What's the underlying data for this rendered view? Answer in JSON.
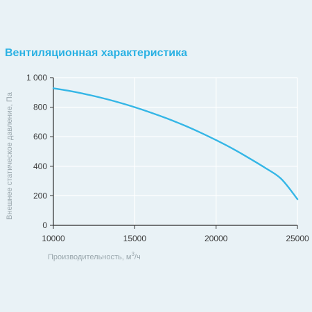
{
  "chart_data": {
    "type": "line",
    "title": "Вентиляционная характеристика",
    "xlabel": "Производительность, м",
    "xlabel_sup": "3",
    "xlabel_suffix": "/ч",
    "ylabel": "Внешнее статическое давление, Па",
    "xlim": [
      10000,
      25000
    ],
    "ylim": [
      0,
      1000
    ],
    "x_ticks": [
      10000,
      15000,
      20000,
      25000
    ],
    "x_tick_labels": [
      "10000",
      "15000",
      "20000",
      "25000"
    ],
    "y_ticks": [
      0,
      200,
      400,
      600,
      800,
      1000
    ],
    "y_tick_labels": [
      "0",
      "200",
      "400",
      "600",
      "800",
      "1 000"
    ],
    "grid": true,
    "line_color": "#34b6e6",
    "series": [
      {
        "x": [
          10000,
          11000,
          12000,
          13000,
          14000,
          15000,
          16000,
          17000,
          18000,
          19000,
          20000,
          21000,
          22000,
          23000,
          24000,
          25000
        ],
        "y": [
          928,
          910,
          888,
          862,
          833,
          800,
          763,
          723,
          679,
          630,
          577,
          520,
          457,
          390,
          315,
          177
        ]
      }
    ]
  }
}
